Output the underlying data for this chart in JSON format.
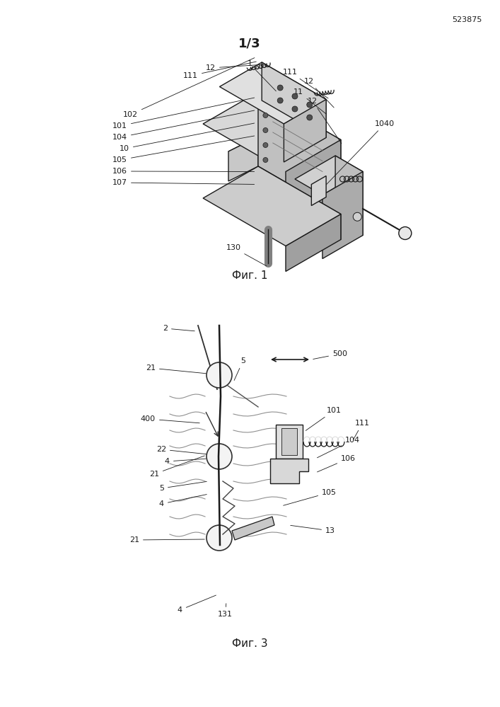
{
  "page_number": "523875",
  "fig1_title": "1/3",
  "fig1_caption": "Фиг. 1",
  "fig3_caption": "Фиг. 3",
  "bg_color": "#ffffff",
  "line_color": "#1a1a1a",
  "text_color": "#1a1a1a"
}
